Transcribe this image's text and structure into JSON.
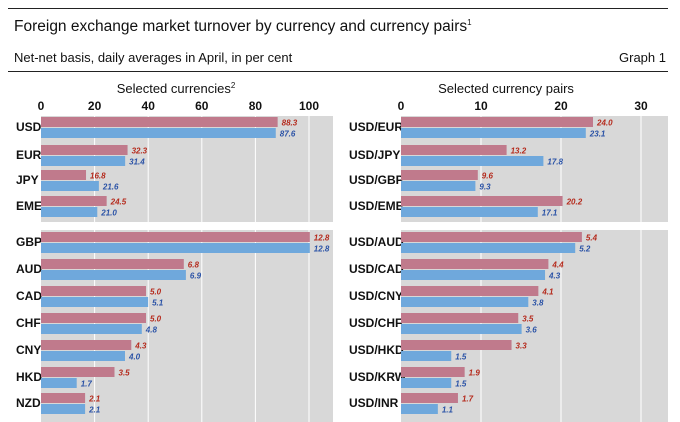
{
  "title": "Foreign exchange market turnover by currency and currency pairs",
  "title_footnote": "1",
  "subtitle": "Net-net basis, daily averages in April, in per cent",
  "graph_label": "Graph 1",
  "colors": {
    "series_a": "#c07a8c",
    "series_b": "#6fa8dc",
    "label_a": "#b52a1c",
    "label_b": "#2a52a6",
    "panel_bg": "#d8d8d8",
    "grid": "#ffffff"
  },
  "chart_data": [
    {
      "type": "bar",
      "orientation": "horizontal",
      "title": "Selected currencies",
      "title_footnote": "2",
      "xlim": [
        0,
        100
      ],
      "xticks": [
        0,
        20,
        40,
        60,
        80,
        100
      ],
      "grid": true,
      "categories": [
        "USD",
        "EUR",
        "JPY",
        "EME",
        "GBP",
        "AUD",
        "CAD",
        "CHF",
        "CNY",
        "HKD",
        "NZD"
      ],
      "category_footnotes": {
        "EME": "3"
      },
      "groups": [
        [
          "USD",
          "EUR",
          "JPY",
          "EME"
        ],
        [
          "GBP",
          "AUD",
          "CAD",
          "CHF",
          "CNY",
          "HKD",
          "NZD"
        ]
      ],
      "series": [
        {
          "values": [
            88.3,
            32.3,
            16.8,
            24.5,
            12.8,
            6.8,
            5.0,
            5.0,
            4.3,
            3.5,
            2.1
          ]
        },
        {
          "values": [
            87.6,
            31.4,
            21.6,
            21.0,
            12.8,
            6.9,
            5.1,
            4.8,
            4.0,
            1.7,
            2.1
          ]
        }
      ],
      "value_labels": [
        [
          "88.3",
          "32.3",
          "16.8",
          "24.5",
          "12.8",
          "6.8",
          "5.0",
          "5.0",
          "4.3",
          "3.5",
          "2.1"
        ],
        [
          "87.6",
          "31.4",
          "21.6",
          "21.0",
          "12.8",
          "6.9",
          "5.1",
          "4.8",
          "4.0",
          "1.7",
          "2.1"
        ]
      ],
      "notes": "Second group plotted on an expanded scale (axis labels shown only for the first group)"
    },
    {
      "type": "bar",
      "orientation": "horizontal",
      "title": "Selected currency pairs",
      "xlim": [
        0,
        30
      ],
      "xticks": [
        0,
        10,
        20,
        30
      ],
      "grid": true,
      "categories": [
        "USD/EUR",
        "USD/JPY",
        "USD/GBP",
        "USD/EME",
        "USD/AUD",
        "USD/CAD",
        "USD/CNY",
        "USD/CHF",
        "USD/HKD",
        "USD/KRW",
        "USD/INR"
      ],
      "category_footnotes": {
        "USD/EME": "3"
      },
      "groups": [
        [
          "USD/EUR",
          "USD/JPY",
          "USD/GBP",
          "USD/EME"
        ],
        [
          "USD/AUD",
          "USD/CAD",
          "USD/CNY",
          "USD/CHF",
          "USD/HKD",
          "USD/KRW",
          "USD/INR"
        ]
      ],
      "series": [
        {
          "values": [
            24.0,
            13.2,
            9.6,
            20.2,
            5.4,
            4.4,
            4.1,
            3.5,
            3.3,
            1.9,
            1.7
          ]
        },
        {
          "values": [
            23.1,
            17.8,
            9.3,
            17.1,
            5.2,
            4.3,
            3.8,
            3.6,
            1.5,
            1.5,
            1.1
          ]
        }
      ],
      "value_labels": [
        [
          "24.0",
          "13.2",
          "9.6",
          "20.2",
          "5.4",
          "4.4",
          "4.1",
          "3.5",
          "3.3",
          "1.9",
          "1.7"
        ],
        [
          "23.1",
          "17.8",
          "9.3",
          "17.1",
          "5.2",
          "4.3",
          "3.8",
          "3.6",
          "1.5",
          "1.5",
          "1.1"
        ]
      ],
      "notes": "Second group plotted on an expanded scale (axis labels shown only for the first group)"
    }
  ]
}
